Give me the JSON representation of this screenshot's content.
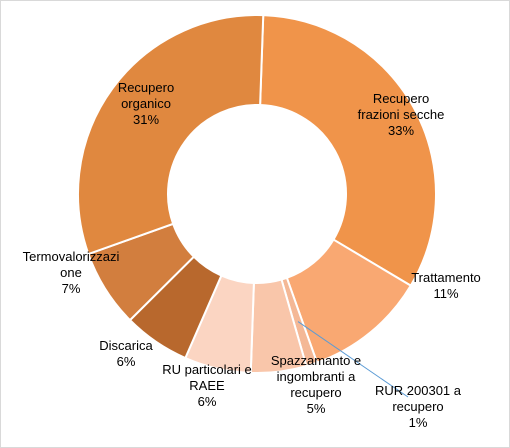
{
  "chart_data": {
    "type": "pie",
    "donut": true,
    "title": "",
    "categories": [
      "Recupero frazioni secche",
      "Trattamento",
      "RUR 200301  a recupero",
      "Spazzamanto e ingombranti a recupero",
      "RU particolari e RAEE",
      "Discarica",
      "Termovalorizzazione",
      "Recupero organico"
    ],
    "values": [
      33,
      11,
      1,
      5,
      6,
      6,
      7,
      31
    ],
    "labels": [
      [
        "Recupero",
        "frazioni secche",
        "33%"
      ],
      [
        "Trattamento",
        "11%"
      ],
      [
        "RUR 200301  a",
        "recupero",
        "1%"
      ],
      [
        "Spazzamanto e",
        "ingombranti a",
        "recupero",
        "5%"
      ],
      [
        "RU particolari e",
        "RAEE",
        "6%"
      ],
      [
        "Discarica",
        "6%"
      ],
      [
        "Termovalorizzazi",
        "one",
        "7%"
      ],
      [
        "Recupero",
        "organico",
        "31%"
      ]
    ],
    "colors": [
      "#f0944a",
      "#f9a872",
      "#f4b896",
      "#f9c6aa",
      "#fbd5c2",
      "#b8682d",
      "#d27e3e",
      "#e0883f"
    ],
    "legend": "none"
  }
}
